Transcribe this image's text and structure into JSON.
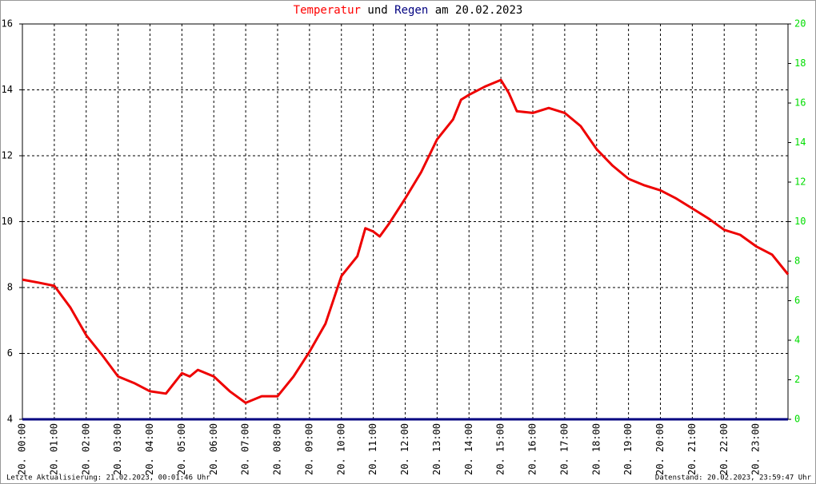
{
  "chart_data": {
    "type": "line",
    "title": [
      {
        "text": "Temperatur",
        "color": "#ff0000"
      },
      {
        "text": "und",
        "color": "#000000"
      },
      {
        "text": "Regen",
        "color": "#000080"
      },
      {
        "text": "am 20.02.2023",
        "color": "#000000"
      }
    ],
    "footer_left": "Letzte Aktualisierung: 21.02.2023, 00:01:46 Uhr",
    "footer_right": "Datenstand: 20.02.2023, 23:59:47 Uhr",
    "xlim": [
      0,
      24
    ],
    "xticks": [
      {
        "value": 0,
        "label": "20. 00:00"
      },
      {
        "value": 1,
        "label": "20. 01:00"
      },
      {
        "value": 2,
        "label": "20. 02:00"
      },
      {
        "value": 3,
        "label": "20. 03:00"
      },
      {
        "value": 4,
        "label": "20. 04:00"
      },
      {
        "value": 5,
        "label": "20. 05:00"
      },
      {
        "value": 6,
        "label": "20. 06:00"
      },
      {
        "value": 7,
        "label": "20. 07:00"
      },
      {
        "value": 8,
        "label": "20. 08:00"
      },
      {
        "value": 9,
        "label": "20. 09:00"
      },
      {
        "value": 10,
        "label": "20. 10:00"
      },
      {
        "value": 11,
        "label": "20. 11:00"
      },
      {
        "value": 12,
        "label": "20. 12:00"
      },
      {
        "value": 13,
        "label": "20. 13:00"
      },
      {
        "value": 14,
        "label": "20. 14:00"
      },
      {
        "value": 15,
        "label": "20. 15:00"
      },
      {
        "value": 16,
        "label": "20. 16:00"
      },
      {
        "value": 17,
        "label": "20. 17:00"
      },
      {
        "value": 18,
        "label": "20. 18:00"
      },
      {
        "value": 19,
        "label": "20. 19:00"
      },
      {
        "value": 20,
        "label": "20. 20:00"
      },
      {
        "value": 21,
        "label": "20. 21:00"
      },
      {
        "value": 22,
        "label": "20. 22:00"
      },
      {
        "value": 23,
        "label": "20. 23:00"
      }
    ],
    "ylim": [
      4,
      16
    ],
    "yticks": [
      4,
      6,
      8,
      10,
      12,
      14,
      16
    ],
    "y2lim": [
      0,
      20
    ],
    "y2ticks": [
      0,
      2,
      4,
      6,
      8,
      10,
      12,
      14,
      16,
      18,
      20
    ],
    "y2color": "#00dd00",
    "grid": true,
    "series": [
      {
        "name": "Temperatur",
        "color": "#ee0000",
        "x": [
          0,
          0.5,
          1,
          1.5,
          2,
          2.5,
          3,
          3.5,
          4,
          4.5,
          5,
          5.25,
          5.5,
          6,
          6.5,
          7,
          7.5,
          8,
          8.5,
          9,
          9.5,
          10,
          10.5,
          10.75,
          11,
          11.2,
          11.5,
          12,
          12.5,
          13,
          13.5,
          13.75,
          14,
          14.5,
          15,
          15.25,
          15.5,
          16,
          16.5,
          17,
          17.5,
          18,
          18.5,
          19,
          19.5,
          20,
          20.5,
          21,
          21.5,
          22,
          22.5,
          23,
          23.5,
          24
        ],
        "values": [
          8.24,
          8.15,
          8.05,
          7.4,
          6.55,
          5.95,
          5.3,
          5.1,
          4.85,
          4.78,
          5.4,
          5.3,
          5.5,
          5.3,
          4.85,
          4.5,
          4.7,
          4.7,
          5.3,
          6.05,
          6.9,
          8.35,
          8.95,
          9.8,
          9.7,
          9.55,
          9.95,
          10.7,
          11.5,
          12.5,
          13.1,
          13.7,
          13.85,
          14.1,
          14.3,
          13.9,
          13.35,
          13.3,
          13.45,
          13.3,
          12.9,
          12.2,
          11.7,
          11.3,
          11.1,
          10.95,
          10.7,
          10.4,
          10.1,
          9.75,
          9.6,
          9.25,
          9.0,
          8.4
        ]
      },
      {
        "name": "Regen",
        "color": "#000080",
        "axis": "y2",
        "x": [
          0,
          24
        ],
        "values": [
          0,
          0
        ]
      }
    ]
  }
}
